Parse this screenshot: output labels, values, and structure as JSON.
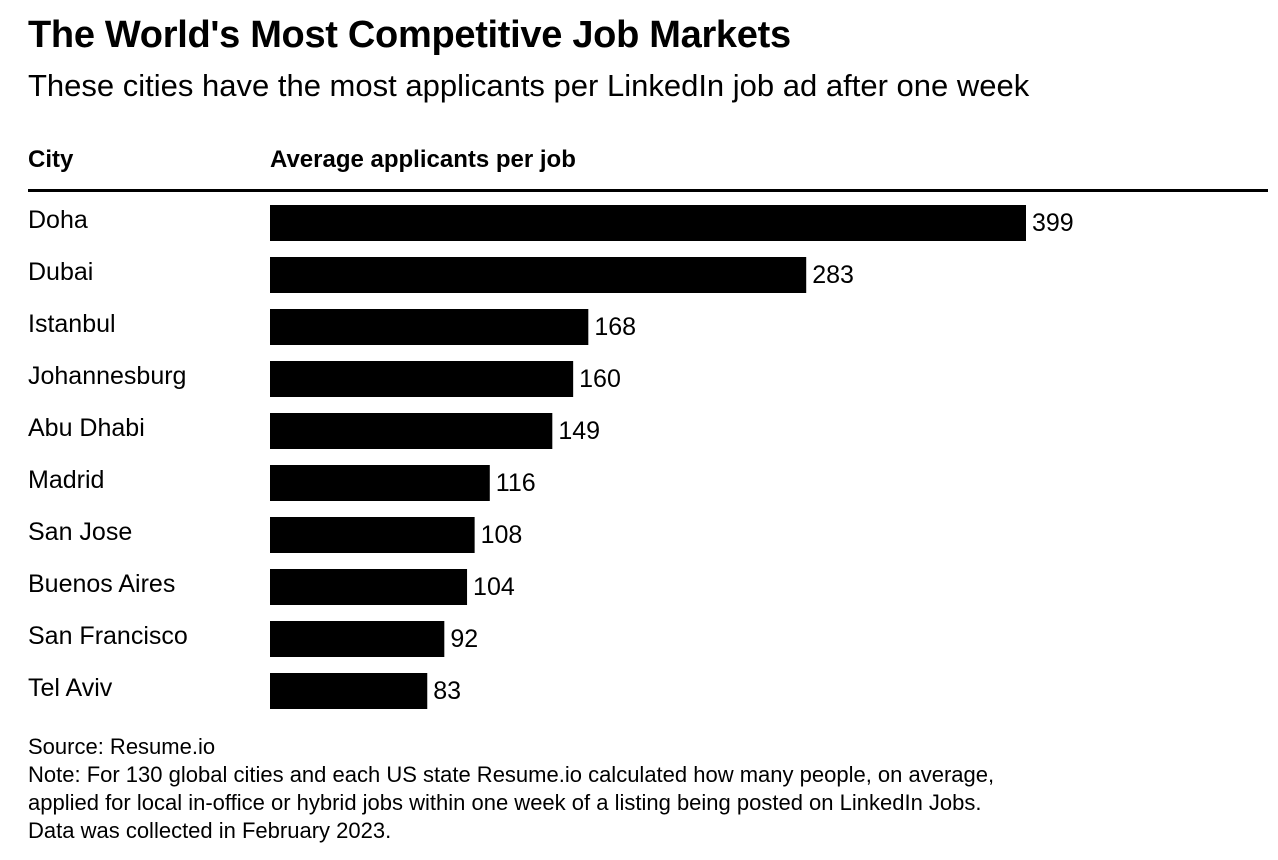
{
  "chart_data": {
    "type": "bar",
    "orientation": "horizontal",
    "title": "The World's Most Competitive Job Markets",
    "subtitle": "These cities have the most applicants per LinkedIn job ad after one week",
    "category_header": "City",
    "value_header": "Average applicants per job",
    "categories": [
      "Doha",
      "Dubai",
      "Istanbul",
      "Johannesburg",
      "Abu Dhabi",
      "Madrid",
      "San Jose",
      "Buenos Aires",
      "San Francisco",
      "Tel Aviv"
    ],
    "values": [
      399,
      283,
      168,
      160,
      149,
      116,
      108,
      104,
      92,
      83
    ],
    "xlim": [
      0,
      399
    ],
    "bar_color": "#000000",
    "grid": false,
    "legend": "none"
  },
  "footer": {
    "source": "Source: Resume.io",
    "note_lines": [
      "Note: For 130 global cities and each US state Resume.io calculated how many people, on average,",
      "applied for local in-office or hybrid jobs within one week of a listing being posted on LinkedIn Jobs.",
      "Data was collected in February 2023."
    ]
  }
}
